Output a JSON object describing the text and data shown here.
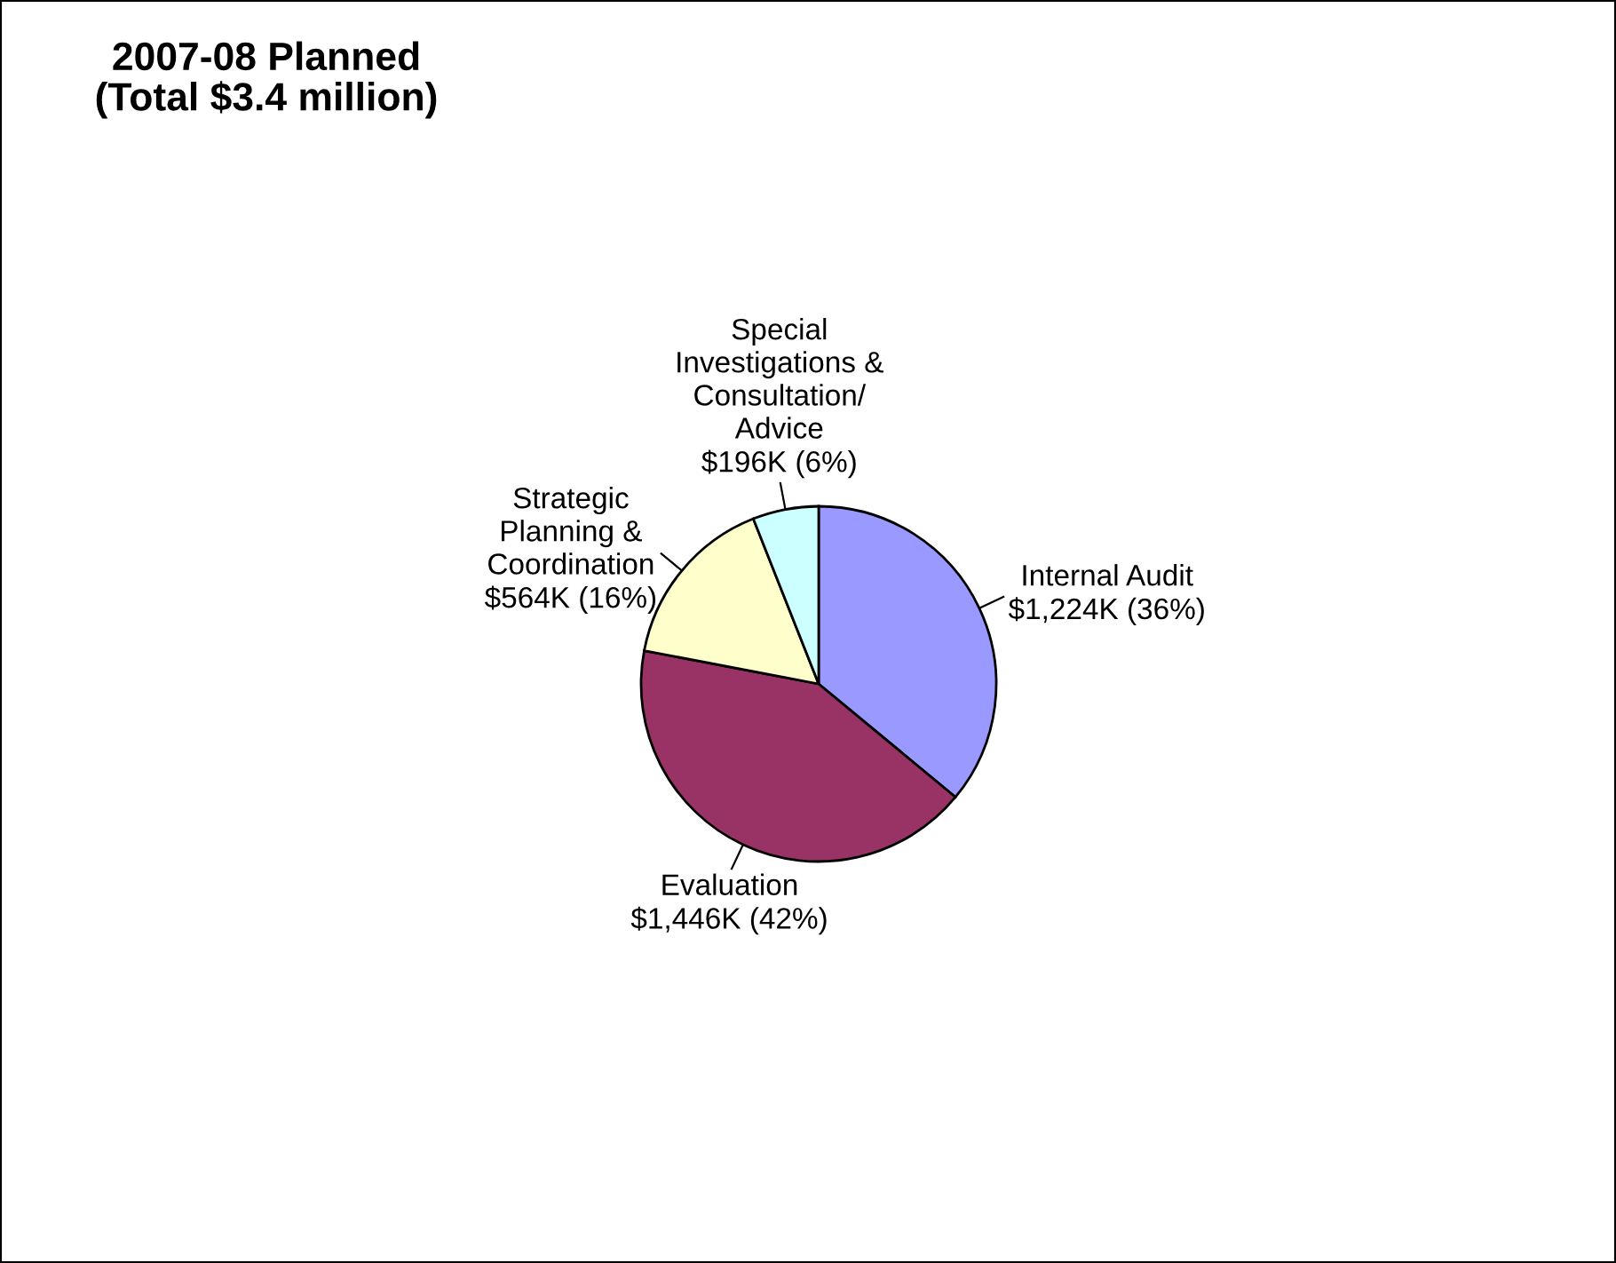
{
  "chart_data": {
    "type": "pie",
    "title": "2007-08 Planned\n(Total $3.4 million)",
    "categories": [
      "Internal Audit",
      "Evaluation",
      "Strategic\nPlanning &\nCoordination",
      "Special\nInvestigations &\nConsultation/\nAdvice"
    ],
    "values": [
      36,
      42,
      16,
      6
    ],
    "value_labels": [
      "$1,224K (36%)",
      "$1,446K (42%)",
      "$564K (16%)",
      "$196K (6%)"
    ],
    "colors": [
      "#9999ff",
      "#993366",
      "#ffffcc",
      "#ccffff"
    ]
  }
}
